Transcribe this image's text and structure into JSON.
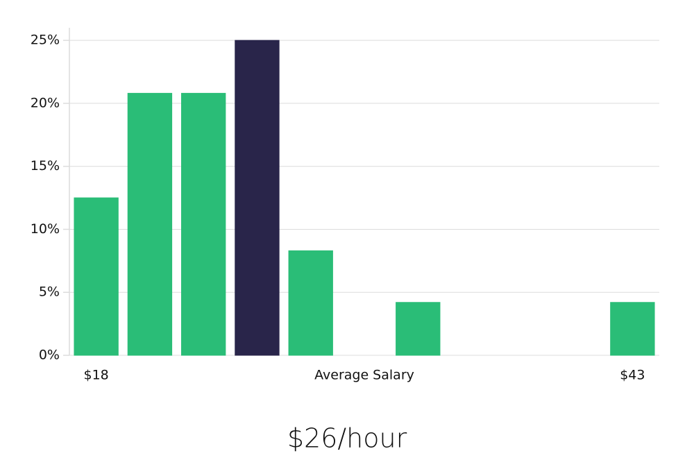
{
  "chart_data": {
    "type": "bar",
    "categories": [
      "$18",
      null,
      null,
      null,
      null,
      null,
      null,
      null,
      null,
      null,
      "$43"
    ],
    "values": [
      12.5,
      20.8,
      20.8,
      25,
      8.3,
      0,
      4.2,
      0,
      0,
      0,
      4.2
    ],
    "colors": [
      "#2abd77",
      "#2abd77",
      "#2abd77",
      "#29254a",
      "#2abd77",
      "#2abd77",
      "#2abd77",
      "#2abd77",
      "#2abd77",
      "#2abd77",
      "#2abd77"
    ],
    "x_label": "Average Salary",
    "annotation": "$26/hour",
    "ylim": [
      0,
      26
    ],
    "yticks": [
      {
        "value": 0,
        "label": "0%"
      },
      {
        "value": 5,
        "label": "5%"
      },
      {
        "value": 10,
        "label": "10%"
      },
      {
        "value": 15,
        "label": "15%"
      },
      {
        "value": 20,
        "label": "20%"
      },
      {
        "value": 25,
        "label": "25%"
      }
    ],
    "grid": true
  }
}
